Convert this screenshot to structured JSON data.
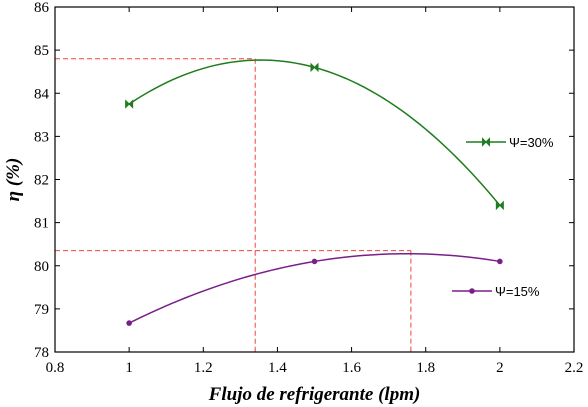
{
  "chart_data": {
    "type": "line",
    "xlabel": "Flujo de refrigerante (lpm)",
    "ylabel": "η (%)",
    "xlim": [
      0.8,
      2.2
    ],
    "ylim": [
      78,
      86
    ],
    "xticks": [
      "0.8",
      "1",
      "1.2",
      "1.4",
      "1.6",
      "1.8",
      "2",
      "2.2"
    ],
    "yticks": [
      "78",
      "79",
      "80",
      "81",
      "82",
      "83",
      "84",
      "85",
      "86"
    ],
    "grid": false,
    "legend_position": "right",
    "series": [
      {
        "name": "Ψ=30%",
        "color": "#1e7d1e",
        "marker": "bowtie",
        "x": [
          1.0,
          1.5,
          2.0
        ],
        "y": [
          83.75,
          84.6,
          81.4
        ]
      },
      {
        "name": "Ψ=15%",
        "color": "#7a1f8a",
        "marker": "circle",
        "x": [
          1.0,
          1.5,
          2.0
        ],
        "y": [
          78.67,
          80.1,
          80.1
        ]
      }
    ],
    "reference_lines": [
      {
        "series": "Ψ=30%",
        "x": 1.34,
        "y": 84.8,
        "color": "#e8453c"
      },
      {
        "series": "Ψ=15%",
        "x": 1.76,
        "y": 80.35,
        "color": "#e8453c"
      }
    ]
  }
}
